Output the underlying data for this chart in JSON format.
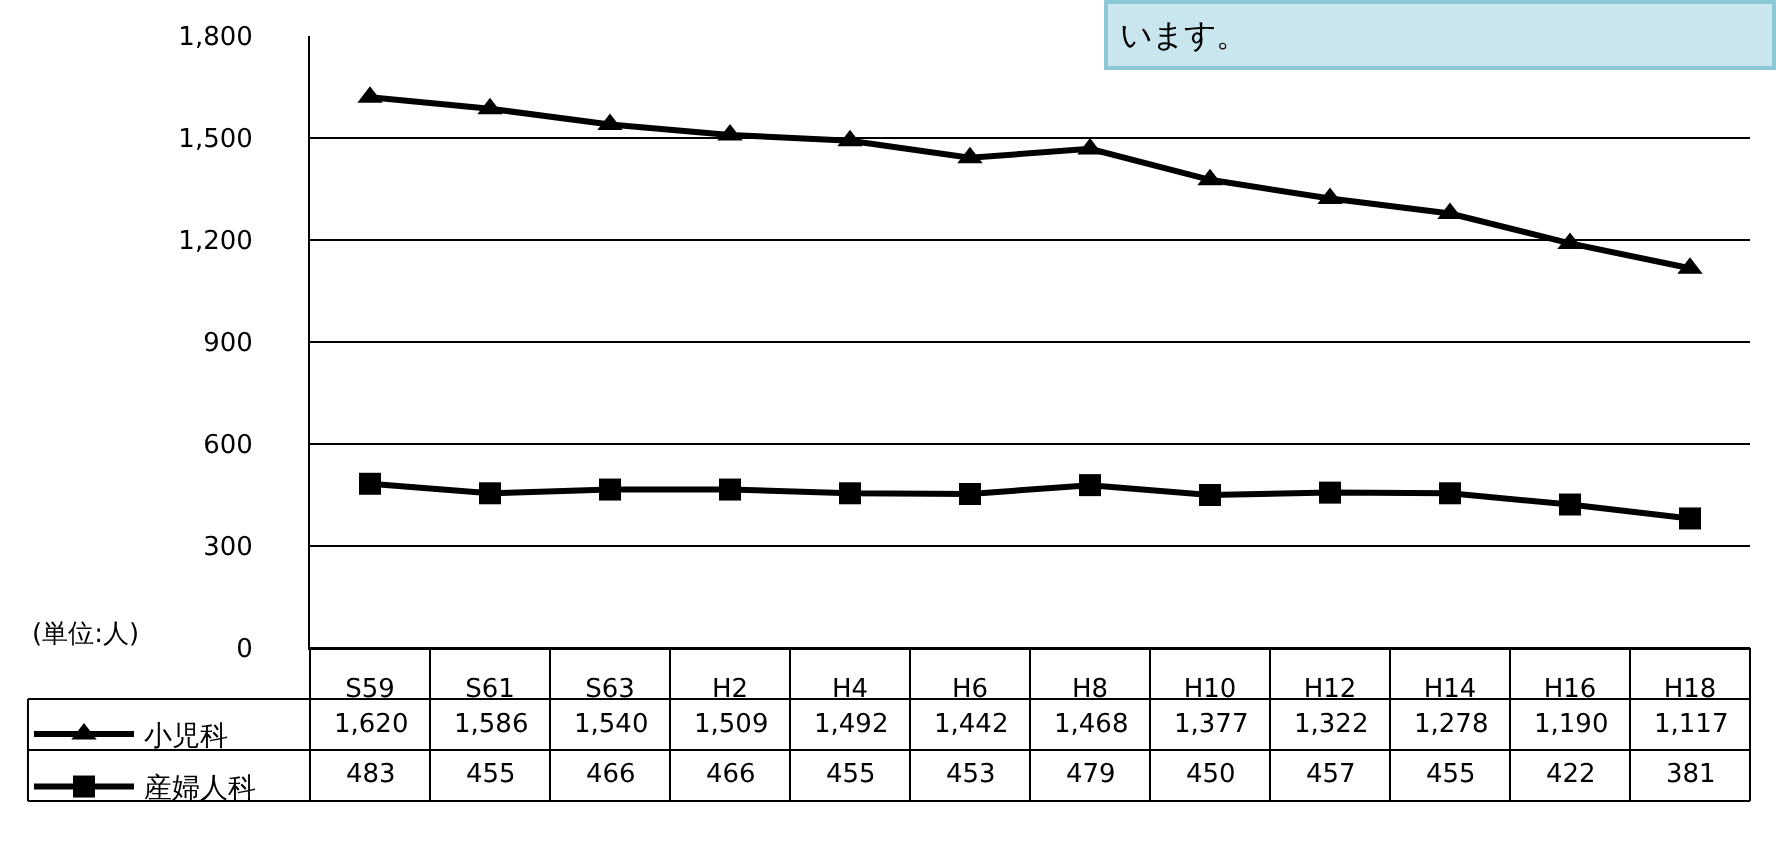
{
  "chart_data": {
    "type": "line",
    "categories": [
      "S59",
      "S61",
      "S63",
      "H2",
      "H4",
      "H6",
      "H8",
      "H10",
      "H12",
      "H14",
      "H16",
      "H18"
    ],
    "series": [
      {
        "name": "小児科",
        "color": "#000000",
        "marker": "triangle",
        "values": [
          1620,
          1586,
          1540,
          1509,
          1492,
          1442,
          1468,
          1377,
          1322,
          1278,
          1190,
          1117
        ],
        "value_labels": [
          "1,620",
          "1,586",
          "1,540",
          "1,509",
          "1,492",
          "1,442",
          "1,468",
          "1,377",
          "1,322",
          "1,278",
          "1,190",
          "1,117"
        ]
      },
      {
        "name": "産婦人科",
        "color": "#000000",
        "marker": "square",
        "values": [
          483,
          455,
          466,
          466,
          455,
          453,
          479,
          450,
          457,
          455,
          422,
          381
        ],
        "value_labels": [
          "483",
          "455",
          "466",
          "466",
          "455",
          "453",
          "479",
          "450",
          "457",
          "455",
          "422",
          "381"
        ]
      }
    ],
    "ylim": [
      0,
      1800
    ],
    "yticks": [
      {
        "value": 0,
        "label": "0"
      },
      {
        "value": 300,
        "label": "300"
      },
      {
        "value": 600,
        "label": "600"
      },
      {
        "value": 900,
        "label": "900"
      },
      {
        "value": 1200,
        "label": "1,200"
      },
      {
        "value": 1500,
        "label": "1,500"
      },
      {
        "value": 1800,
        "label": "1,800"
      }
    ],
    "grid": "y",
    "legend": "bottom left",
    "line_style": "solid",
    "annotations": [
      "います。",
      "(単位:人)"
    ]
  }
}
